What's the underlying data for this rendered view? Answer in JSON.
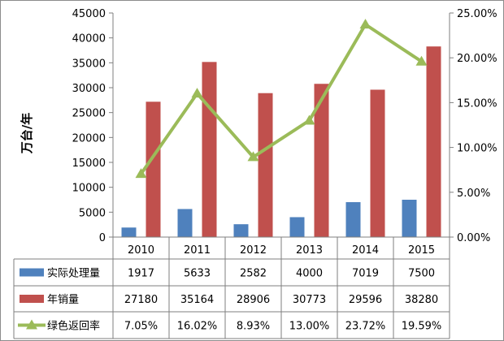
{
  "chart_data": {
    "type": "bar",
    "categories": [
      "2010",
      "2011",
      "2012",
      "2013",
      "2014",
      "2015"
    ],
    "ylabel": "万台/年",
    "y_left": {
      "ticks": [
        0,
        5000,
        10000,
        15000,
        20000,
        25000,
        30000,
        35000,
        40000,
        45000
      ],
      "range": [
        0,
        45000
      ]
    },
    "y_right": {
      "ticks": [
        "0.00%",
        "5.00%",
        "10.00%",
        "15.00%",
        "20.00%",
        "25.00%"
      ],
      "range": [
        0,
        25
      ]
    },
    "grid": "off",
    "legend": "table-left",
    "series": [
      {
        "name": "实际处理量",
        "type": "bar",
        "axis": "left",
        "color": "#4f81bd",
        "values": [
          1917,
          5633,
          2582,
          4000,
          7019,
          7500
        ],
        "labels": [
          "1917",
          "5633",
          "2582",
          "4000",
          "7019",
          "7500"
        ]
      },
      {
        "name": "年销量",
        "type": "bar",
        "axis": "left",
        "color": "#c0504d",
        "values": [
          27180,
          35164,
          28906,
          30773,
          29596,
          38280
        ],
        "labels": [
          "27180",
          "35164",
          "28906",
          "30773",
          "29596",
          "38280"
        ]
      },
      {
        "name": "绿色返回率",
        "type": "line",
        "axis": "right",
        "color": "#9bbb59",
        "values": [
          7.05,
          16.02,
          8.93,
          13.0,
          23.72,
          19.59
        ],
        "labels": [
          "7.05%",
          "16.02%",
          "8.93%",
          "13.00%",
          "23.72%",
          "19.59%"
        ]
      }
    ]
  }
}
